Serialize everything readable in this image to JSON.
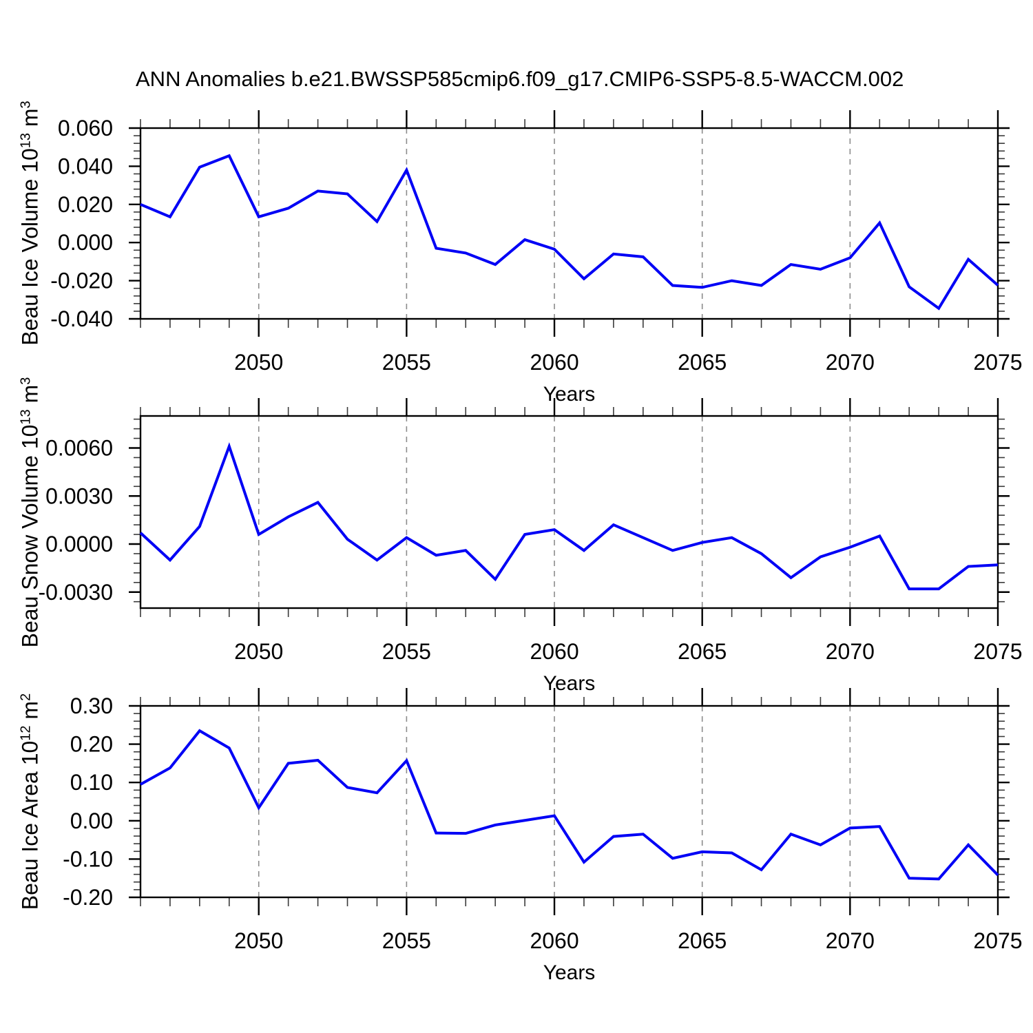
{
  "title": "ANN Anomalies b.e21.BWSSP585cmip6.f09_g17.CMIP6-SSP5-8.5-WACCM.002",
  "colors": {
    "line": "#0000f5",
    "axis": "#000000",
    "gridline": "#8c8c8c"
  },
  "x_axis": {
    "label": "Years",
    "years": [
      2046,
      2047,
      2048,
      2049,
      2050,
      2051,
      2052,
      2053,
      2054,
      2055,
      2056,
      2057,
      2058,
      2059,
      2060,
      2061,
      2062,
      2063,
      2064,
      2065,
      2066,
      2067,
      2068,
      2069,
      2070,
      2071,
      2072,
      2073,
      2074,
      2075
    ],
    "major_tick_years": [
      2050,
      2055,
      2060,
      2065,
      2070,
      2075
    ],
    "gridline_years": [
      2050,
      2055,
      2060,
      2065,
      2070
    ],
    "xlim": [
      2046,
      2075
    ]
  },
  "chart_data": [
    {
      "id": "beau-ice-volume",
      "type": "line",
      "ylabel": {
        "prefix": "Beau Ice Volume 10",
        "sup1": "13",
        "mid": " m",
        "sup2": "3",
        "text": "Beau Ice Volume 10^13 m^3"
      },
      "ylim": [
        -0.04,
        0.06
      ],
      "ytick_values": [
        0.06,
        0.04,
        0.02,
        0.0,
        -0.02,
        -0.04
      ],
      "ytick_labels": [
        "0.060",
        "0.040",
        "0.020",
        "0.000",
        "-0.020",
        "-0.040"
      ],
      "yminor_step": 0.004,
      "grid": true,
      "legend": "none",
      "values": [
        0.02,
        0.0135,
        0.0395,
        0.0455,
        0.0135,
        0.018,
        0.027,
        0.0255,
        0.011,
        0.038,
        -0.003,
        -0.0055,
        -0.0115,
        0.0015,
        -0.0035,
        -0.019,
        -0.006,
        -0.0075,
        -0.0225,
        -0.0235,
        -0.02,
        -0.0225,
        -0.0115,
        -0.014,
        -0.008,
        0.0103,
        -0.0232,
        -0.0345,
        -0.0088,
        -0.0224
      ]
    },
    {
      "id": "beau-snow-volume",
      "type": "line",
      "ylabel": {
        "prefix": "Beau Snow Volume 10",
        "sup1": "13",
        "mid": " m",
        "sup2": "3",
        "text": "Beau Snow Volume 10^13 m^3"
      },
      "ylim": [
        -0.004,
        0.008
      ],
      "ytick_values": [
        0.006,
        0.003,
        0.0,
        -0.003
      ],
      "ytick_labels": [
        "0.0060",
        "0.0030",
        "0.0000",
        "-0.0030"
      ],
      "yminor_step": 0.0006,
      "grid": true,
      "legend": "none",
      "values": [
        0.0007,
        -0.001,
        0.0011,
        0.0061,
        0.0006,
        0.0017,
        0.0026,
        0.0003,
        -0.001,
        0.0004,
        -0.0007,
        -0.0004,
        -0.0022,
        0.0006,
        0.0009,
        -0.0004,
        0.0012,
        0.0004,
        -0.0004,
        0.0001,
        0.0004,
        -0.0006,
        -0.0021,
        -0.0008,
        -0.0002,
        0.0005,
        -0.0028,
        -0.0028,
        -0.0014,
        -0.0013
      ]
    },
    {
      "id": "beau-ice-area",
      "type": "line",
      "ylabel": {
        "prefix": "Beau Ice Area 10",
        "sup1": "12",
        "mid": " m",
        "sup2": "2",
        "text": "Beau Ice Area 10^12 m^2"
      },
      "ylim": [
        -0.2,
        0.3
      ],
      "ytick_values": [
        0.3,
        0.2,
        0.1,
        0.0,
        -0.1,
        -0.2
      ],
      "ytick_labels": [
        "0.30",
        "0.20",
        "0.10",
        "0.00",
        "-0.10",
        "-0.20"
      ],
      "yminor_step": 0.02,
      "grid": true,
      "legend": "none",
      "values": [
        0.095,
        0.138,
        0.235,
        0.19,
        0.034,
        0.15,
        0.158,
        0.087,
        0.073,
        0.157,
        -0.032,
        -0.033,
        -0.011,
        0.001,
        0.013,
        -0.108,
        -0.041,
        -0.035,
        -0.098,
        -0.081,
        -0.084,
        -0.128,
        -0.035,
        -0.063,
        -0.019,
        -0.015,
        -0.15,
        -0.152,
        -0.063,
        -0.142
      ]
    }
  ]
}
